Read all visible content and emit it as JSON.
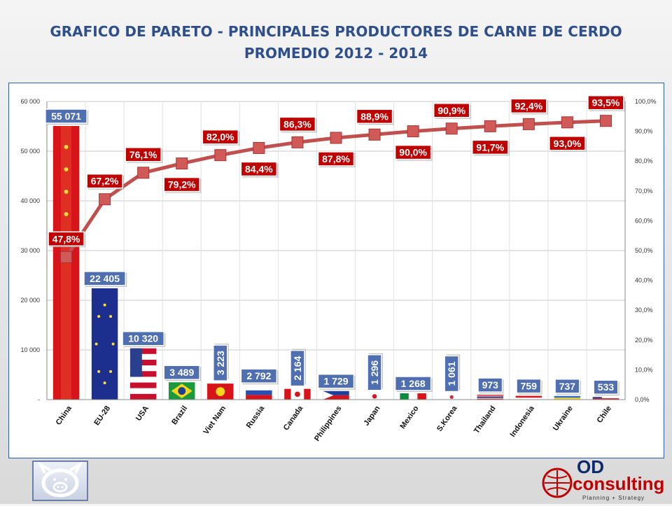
{
  "title_line1": "GRAFICO DE PARETO -  PRINCIPALES PRODUCTORES DE CARNE DE CERDO",
  "title_line2": "PROMEDIO 2012 - 2014",
  "colors": {
    "bar": "#c8102e",
    "line": "#c0504d",
    "label_blue": "#4f6fb0",
    "label_red": "#c00000",
    "title": "#2e4f8c"
  },
  "logo": {
    "brand": "OD",
    "brand2": "consulting",
    "tagline": "Planning + Strategy",
    "pig_icon": "pig-icon"
  },
  "chart_data": {
    "type": "bar",
    "categories": [
      "China",
      "EU-28",
      "USA",
      "Brazil",
      "Viet Nam",
      "Russia",
      "Canada",
      "Philippines",
      "Japan",
      "Mexico",
      "S.Korea",
      "Thailand",
      "Indonesia",
      "Ukraine",
      "Chile"
    ],
    "values": [
      55071,
      22405,
      10320,
      3489,
      3223,
      2792,
      2164,
      1729,
      1296,
      1268,
      1061,
      973,
      759,
      737,
      533
    ],
    "value_labels": [
      "55 071",
      "22 405",
      "10 320",
      "3 489",
      "3 223",
      "2 792",
      "2 164",
      "1 729",
      "1 296",
      "1 268",
      "1 061",
      "973",
      "759",
      "737",
      "533"
    ],
    "value_label_rotated": [
      false,
      false,
      false,
      false,
      true,
      false,
      true,
      false,
      true,
      false,
      true,
      false,
      false,
      false,
      false
    ],
    "cumulative_pct": [
      47.8,
      67.2,
      76.1,
      79.2,
      82.0,
      84.4,
      86.3,
      87.8,
      88.9,
      90.0,
      90.9,
      91.7,
      92.4,
      93.0,
      93.5
    ],
    "cumulative_labels": [
      "47,8%",
      "67,2%",
      "76,1%",
      "79,2%",
      "82,0%",
      "84,4%",
      "86,3%",
      "87,8%",
      "88,9%",
      "90,0%",
      "90,9%",
      "91,7%",
      "92,4%",
      "93,0%",
      "93,5%"
    ],
    "pct_label_below": [
      false,
      false,
      false,
      true,
      false,
      true,
      false,
      true,
      false,
      true,
      false,
      true,
      false,
      true,
      false
    ],
    "y_left": {
      "min": 0,
      "max": 60000,
      "ticks": [
        0,
        10000,
        20000,
        30000,
        40000,
        50000,
        60000
      ],
      "tick_labels": [
        "-",
        "10 000",
        "20 000",
        "30 000",
        "40 000",
        "50 000",
        "60 000"
      ]
    },
    "y_right": {
      "min": 0,
      "max": 100,
      "ticks": [
        0,
        10,
        20,
        30,
        40,
        50,
        60,
        70,
        80,
        90,
        100
      ],
      "tick_labels": [
        "0,0%",
        "10,0%",
        "20,0%",
        "30,0%",
        "40,0%",
        "50,0%",
        "60,0%",
        "70,0%",
        "80,0%",
        "90,0%",
        "100,0%"
      ]
    },
    "grid": true,
    "bar_fills": [
      "china",
      "eu",
      "usa",
      "brazil",
      "vietnam",
      "russia",
      "canada",
      "philippines",
      "japan",
      "mexico",
      "korea",
      "thailand",
      "indonesia",
      "ukraine",
      "chile"
    ]
  }
}
